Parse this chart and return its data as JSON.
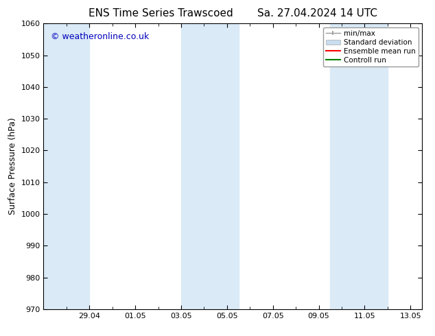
{
  "title_left": "ENS Time Series Trawscoed",
  "title_right": "Sa. 27.04.2024 14 UTC",
  "ylabel": "Surface Pressure (hPa)",
  "ylim": [
    970,
    1060
  ],
  "yticks": [
    970,
    980,
    990,
    1000,
    1010,
    1020,
    1030,
    1040,
    1050,
    1060
  ],
  "xlabel_ticks": [
    "29.04",
    "01.05",
    "03.05",
    "05.05",
    "07.05",
    "09.05",
    "11.05",
    "13.05"
  ],
  "watermark": "© weatheronline.co.uk",
  "bg_color": "#ffffff",
  "plot_bg_color": "#ffffff",
  "shaded_bands": [
    {
      "x_start": 27.0,
      "x_end": 29.0,
      "color": "#daeaf7"
    },
    {
      "x_start": 33.0,
      "x_end": 35.5,
      "color": "#daeaf7"
    },
    {
      "x_start": 39.5,
      "x_end": 42.0,
      "color": "#daeaf7"
    }
  ],
  "legend_items": [
    {
      "label": "min/max",
      "type": "errorbar",
      "color": "#999999"
    },
    {
      "label": "Standard deviation",
      "type": "bar",
      "color": "#c8ddf0"
    },
    {
      "label": "Ensemble mean run",
      "type": "line",
      "color": "#ff0000"
    },
    {
      "label": "Controll run",
      "type": "line",
      "color": "#008000"
    }
  ],
  "x_min": 27.0,
  "x_max": 43.5,
  "x_tick_positions": [
    29.0,
    31.0,
    33.0,
    35.0,
    37.0,
    39.0,
    41.0,
    43.0
  ],
  "title_fontsize": 11,
  "tick_fontsize": 8,
  "ylabel_fontsize": 9,
  "legend_fontsize": 7.5,
  "watermark_color": "#0000bb",
  "watermark_fontsize": 9
}
